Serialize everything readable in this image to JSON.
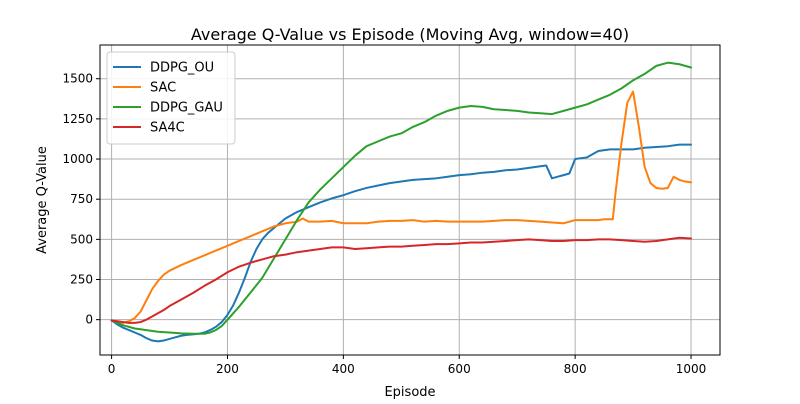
{
  "chart_data": {
    "type": "line",
    "title": "Average Q-Value vs Episode (Moving Avg, window=40)",
    "xlabel": "Episode",
    "ylabel": "Average Q-Value",
    "xlim": [
      -20,
      1050
    ],
    "ylim": [
      -220,
      1710
    ],
    "xticks": [
      0,
      200,
      400,
      600,
      800,
      1000
    ],
    "yticks": [
      0,
      250,
      500,
      750,
      1000,
      1250,
      1500
    ],
    "grid": true,
    "legend_position": "top-left",
    "series": [
      {
        "name": "DDPG_OU",
        "color": "#1f77b4",
        "x": [
          0,
          10,
          20,
          30,
          40,
          50,
          60,
          70,
          80,
          90,
          100,
          110,
          120,
          130,
          140,
          150,
          160,
          170,
          180,
          190,
          200,
          210,
          220,
          230,
          240,
          250,
          260,
          270,
          280,
          290,
          300,
          320,
          340,
          360,
          380,
          400,
          420,
          440,
          460,
          480,
          500,
          520,
          540,
          560,
          580,
          600,
          620,
          640,
          660,
          680,
          700,
          720,
          740,
          750,
          760,
          770,
          780,
          790,
          800,
          820,
          840,
          860,
          880,
          900,
          920,
          940,
          960,
          980,
          1000
        ],
        "y": [
          -5,
          -30,
          -50,
          -65,
          -80,
          -95,
          -115,
          -130,
          -135,
          -130,
          -120,
          -110,
          -100,
          -95,
          -92,
          -88,
          -80,
          -65,
          -45,
          -15,
          30,
          90,
          170,
          260,
          360,
          440,
          500,
          540,
          570,
          600,
          630,
          670,
          700,
          730,
          755,
          775,
          800,
          820,
          835,
          850,
          860,
          870,
          875,
          880,
          890,
          900,
          905,
          915,
          920,
          930,
          935,
          945,
          955,
          960,
          880,
          890,
          900,
          910,
          1000,
          1010,
          1050,
          1060,
          1060,
          1060,
          1070,
          1075,
          1080,
          1090,
          1090
        ]
      },
      {
        "name": "SAC",
        "color": "#ff7f0e",
        "x": [
          0,
          10,
          20,
          30,
          40,
          50,
          60,
          70,
          80,
          90,
          100,
          120,
          140,
          160,
          180,
          200,
          220,
          240,
          260,
          280,
          300,
          320,
          330,
          340,
          360,
          380,
          400,
          420,
          440,
          460,
          480,
          500,
          520,
          540,
          560,
          580,
          600,
          620,
          640,
          660,
          680,
          700,
          720,
          740,
          760,
          780,
          800,
          820,
          840,
          850,
          860,
          865,
          870,
          880,
          890,
          900,
          910,
          920,
          930,
          940,
          950,
          960,
          970,
          980,
          990,
          1000
        ],
        "y": [
          -5,
          -15,
          -20,
          -10,
          10,
          50,
          120,
          190,
          240,
          280,
          305,
          340,
          370,
          400,
          430,
          460,
          490,
          520,
          550,
          580,
          600,
          610,
          630,
          610,
          610,
          615,
          600,
          600,
          600,
          610,
          615,
          615,
          620,
          610,
          615,
          610,
          610,
          610,
          610,
          615,
          620,
          620,
          615,
          610,
          605,
          600,
          620,
          620,
          620,
          625,
          625,
          625,
          800,
          1100,
          1350,
          1420,
          1200,
          950,
          850,
          820,
          815,
          820,
          890,
          870,
          860,
          855
        ]
      },
      {
        "name": "DDPG_GAU",
        "color": "#2ca02c",
        "x": [
          0,
          10,
          20,
          30,
          40,
          50,
          60,
          80,
          100,
          120,
          140,
          160,
          170,
          180,
          190,
          200,
          220,
          240,
          260,
          280,
          300,
          320,
          340,
          360,
          380,
          400,
          420,
          440,
          460,
          480,
          500,
          520,
          540,
          560,
          580,
          600,
          620,
          640,
          660,
          680,
          700,
          720,
          740,
          760,
          780,
          800,
          820,
          840,
          860,
          880,
          900,
          920,
          940,
          960,
          980,
          1000
        ],
        "y": [
          -5,
          -20,
          -35,
          -45,
          -55,
          -60,
          -65,
          -75,
          -80,
          -85,
          -88,
          -88,
          -80,
          -65,
          -40,
          0,
          80,
          170,
          260,
          380,
          500,
          620,
          730,
          810,
          880,
          950,
          1020,
          1080,
          1110,
          1140,
          1160,
          1200,
          1230,
          1270,
          1300,
          1320,
          1330,
          1325,
          1310,
          1305,
          1300,
          1290,
          1285,
          1280,
          1300,
          1320,
          1340,
          1370,
          1400,
          1440,
          1490,
          1530,
          1580,
          1600,
          1590,
          1570
        ]
      },
      {
        "name": "SA4C",
        "color": "#d62728",
        "x": [
          0,
          10,
          20,
          30,
          40,
          50,
          60,
          70,
          80,
          90,
          100,
          120,
          140,
          160,
          180,
          200,
          220,
          240,
          260,
          280,
          300,
          320,
          340,
          360,
          380,
          400,
          420,
          440,
          460,
          480,
          500,
          520,
          540,
          560,
          580,
          600,
          620,
          640,
          660,
          680,
          700,
          720,
          740,
          760,
          780,
          800,
          820,
          840,
          860,
          880,
          900,
          920,
          940,
          960,
          980,
          1000
        ],
        "y": [
          -5,
          -10,
          -15,
          -20,
          -20,
          -15,
          0,
          20,
          40,
          60,
          85,
          125,
          165,
          210,
          250,
          295,
          330,
          355,
          375,
          395,
          405,
          420,
          430,
          440,
          450,
          450,
          440,
          445,
          450,
          455,
          455,
          460,
          465,
          470,
          470,
          475,
          480,
          480,
          485,
          490,
          495,
          500,
          495,
          490,
          490,
          495,
          495,
          500,
          500,
          495,
          490,
          485,
          490,
          500,
          510,
          505
        ]
      }
    ]
  }
}
